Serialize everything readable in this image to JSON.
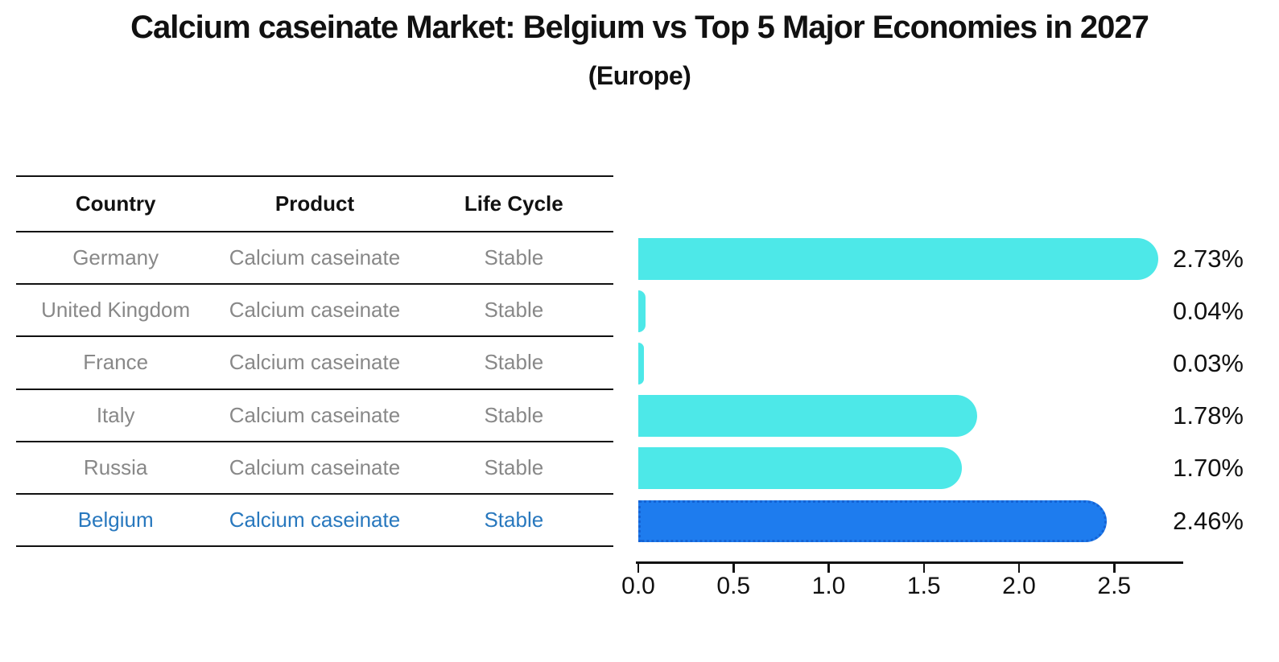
{
  "title": "Calcium caseinate Market: Belgium vs Top 5 Major Economies in 2027",
  "subtitle": "(Europe)",
  "table": {
    "headers": [
      "Country",
      "Product",
      "Life Cycle"
    ],
    "rows": [
      {
        "country": "Germany",
        "product": "Calcium caseinate",
        "life_cycle": "Stable",
        "highlight": false
      },
      {
        "country": "United Kingdom",
        "product": "Calcium caseinate",
        "life_cycle": "Stable",
        "highlight": false
      },
      {
        "country": "France",
        "product": "Calcium caseinate",
        "life_cycle": "Stable",
        "highlight": false
      },
      {
        "country": "Italy",
        "product": "Calcium caseinate",
        "life_cycle": "Stable",
        "highlight": false
      },
      {
        "country": "Russia",
        "product": "Calcium caseinate",
        "life_cycle": "Stable",
        "highlight": false
      },
      {
        "country": "Belgium",
        "product": "Calcium caseinate",
        "life_cycle": "Stable",
        "highlight": true
      }
    ]
  },
  "chart_data": {
    "type": "bar",
    "orientation": "horizontal",
    "title": "Calcium caseinate Market: Belgium vs Top 5 Major Economies in 2027",
    "subtitle": "(Europe)",
    "categories": [
      "Germany",
      "United Kingdom",
      "France",
      "Italy",
      "Russia",
      "Belgium"
    ],
    "values": [
      2.73,
      0.04,
      0.03,
      1.78,
      1.7,
      2.46
    ],
    "value_labels": [
      "2.73%",
      "0.04%",
      "0.03%",
      "1.78%",
      "1.70%",
      "2.46%"
    ],
    "highlight_category": "Belgium",
    "x_ticks": [
      "0.0",
      "0.5",
      "1.0",
      "1.5",
      "2.0",
      "2.5"
    ],
    "x_tick_values": [
      0,
      0.5,
      1.0,
      1.5,
      2.0,
      2.5
    ],
    "xlim": [
      0,
      2.86
    ],
    "xlabel": "",
    "ylabel": "",
    "grid": false,
    "legend_position": "none"
  },
  "colors": {
    "bar": "#4DE8E8",
    "highlight_bar": "#1E7CEE",
    "highlight_text": "#2878BE",
    "row_text": "#888888",
    "axis": "#111111"
  }
}
